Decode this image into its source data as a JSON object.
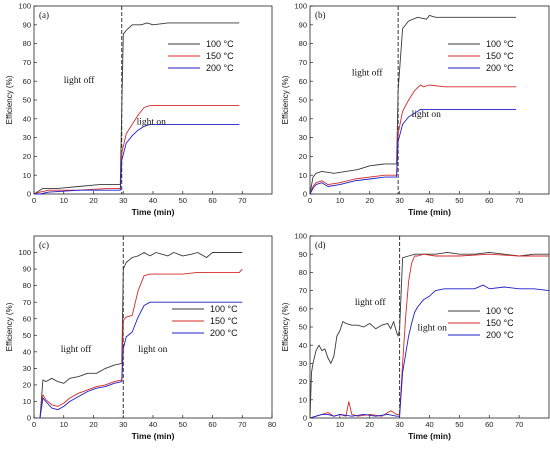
{
  "colors": {
    "100": "#3a3a3a",
    "150": "#d42a2a",
    "200": "#1f1fcc"
  },
  "chart_data": [
    {
      "type": "line",
      "panel_label": "(a)",
      "xlabel": "Time (min)",
      "ylabel": "Efficiency (%)",
      "xlim": [
        0,
        80
      ],
      "ylim": [
        0,
        100
      ],
      "xticks": [
        0,
        10,
        20,
        30,
        40,
        50,
        60,
        70
      ],
      "yticks": [
        0,
        10,
        20,
        30,
        40,
        50,
        60,
        70,
        80,
        90,
        100
      ],
      "light_off_x": 29.5,
      "annotations": [
        {
          "text": "light off",
          "x": 10,
          "y": 59
        },
        {
          "text": "light on",
          "x": 34.5,
          "y": 37
        }
      ],
      "legend_position": "top-right",
      "series": [
        {
          "name": "100 °C",
          "x": [
            0,
            1,
            3,
            8,
            15,
            22,
            29,
            29.3,
            30,
            31,
            33,
            36,
            38,
            40,
            45,
            55,
            69
          ],
          "y": [
            0,
            1,
            3,
            3,
            4,
            5,
            5,
            30,
            85,
            87,
            90,
            90,
            91,
            90,
            91,
            91,
            91
          ]
        },
        {
          "name": "150 °C",
          "x": [
            0,
            2,
            5,
            10,
            15,
            20,
            25,
            29,
            29.5,
            31,
            33,
            35,
            37,
            39,
            42,
            50,
            60,
            69
          ],
          "y": [
            0,
            1,
            2,
            2,
            2,
            2.5,
            3,
            3,
            22,
            32,
            37,
            42,
            46,
            47,
            47,
            47,
            47,
            47
          ]
        },
        {
          "name": "200 °C",
          "x": [
            0,
            2,
            5,
            10,
            15,
            20,
            25,
            29,
            29.5,
            31,
            33,
            35,
            37,
            39,
            42,
            50,
            60,
            69
          ],
          "y": [
            0,
            0,
            1,
            1.5,
            2,
            2,
            2,
            2,
            18,
            27,
            31,
            34,
            36,
            37,
            37,
            37,
            37,
            37
          ]
        }
      ]
    },
    {
      "type": "line",
      "panel_label": "(b)",
      "xlabel": "Time (min)",
      "ylabel": "Efficiency (%)",
      "xlim": [
        0,
        80
      ],
      "ylim": [
        0,
        100
      ],
      "xticks": [
        0,
        10,
        20,
        30,
        40,
        50,
        60,
        70
      ],
      "yticks": [
        0,
        10,
        20,
        30,
        40,
        50,
        60,
        70,
        80,
        90,
        100
      ],
      "light_off_x": 29.5,
      "annotations": [
        {
          "text": "light off",
          "x": 14,
          "y": 63
        },
        {
          "text": "light on",
          "x": 34,
          "y": 41
        }
      ],
      "legend_position": "top-right",
      "series": [
        {
          "name": "100 °C",
          "x": [
            0,
            1,
            2,
            4,
            8,
            12,
            16,
            20,
            25,
            29,
            29.5,
            31,
            33,
            36,
            39,
            40,
            42,
            50,
            60,
            69
          ],
          "y": [
            0,
            9,
            11,
            12,
            11,
            12,
            13,
            15,
            16,
            16,
            55,
            88,
            92,
            94,
            93,
            95,
            94,
            94,
            94,
            94
          ]
        },
        {
          "name": "150 °C",
          "x": [
            0,
            1,
            2,
            4,
            6,
            10,
            15,
            20,
            25,
            29,
            29.5,
            31,
            33,
            35,
            37,
            38,
            40,
            45,
            55,
            69
          ],
          "y": [
            0,
            4,
            6,
            7,
            5,
            6,
            8,
            9,
            10,
            10,
            32,
            44,
            50,
            55,
            58,
            57,
            58,
            57,
            57,
            57
          ]
        },
        {
          "name": "200 °C",
          "x": [
            0,
            1,
            2,
            4,
            6,
            10,
            15,
            20,
            25,
            29,
            29.5,
            31,
            33,
            35,
            37,
            39,
            42,
            50,
            60,
            69
          ],
          "y": [
            0,
            3,
            5,
            6,
            4,
            5,
            7,
            8,
            9,
            9,
            28,
            37,
            41,
            43,
            45,
            45,
            45,
            45,
            45,
            45
          ]
        }
      ]
    },
    {
      "type": "line",
      "panel_label": "(c)",
      "xlabel": "Time (min)",
      "ylabel": "Efficiency (%)",
      "xlim": [
        0,
        80
      ],
      "ylim": [
        0,
        110
      ],
      "xticks": [
        0,
        10,
        20,
        30,
        40,
        50,
        60,
        70,
        80
      ],
      "yticks": [
        0,
        10,
        20,
        30,
        40,
        50,
        60,
        70,
        80,
        90,
        100
      ],
      "light_off_x": 30,
      "annotations": [
        {
          "text": "light off",
          "x": 9,
          "y": 40
        },
        {
          "text": "light on",
          "x": 35,
          "y": 40
        }
      ],
      "legend_position": "center-right",
      "series": [
        {
          "name": "100 °C",
          "x": [
            2,
            3,
            4,
            6,
            8,
            10,
            12,
            15,
            18,
            21,
            24,
            27,
            29.5,
            30,
            31,
            33,
            35,
            37,
            39,
            41,
            43,
            45,
            47,
            50,
            53,
            55,
            58,
            60,
            63,
            66,
            70
          ],
          "y": [
            0,
            23,
            22,
            24,
            22,
            21,
            24,
            25,
            27,
            27,
            30,
            32,
            33,
            90,
            94,
            97,
            98,
            100,
            98,
            100,
            99,
            98,
            100,
            98,
            99,
            100,
            97,
            100,
            100,
            100,
            100
          ]
        },
        {
          "name": "150 °C",
          "x": [
            2,
            3,
            4,
            6,
            8,
            10,
            12,
            15,
            18,
            21,
            24,
            27,
            29.5,
            30,
            31,
            33,
            35,
            37,
            39,
            42,
            45,
            50,
            55,
            60,
            65,
            69,
            70
          ],
          "y": [
            0,
            14,
            11,
            8,
            7,
            9,
            12,
            15,
            17,
            19,
            20,
            22,
            23,
            59,
            61,
            62,
            77,
            86,
            87,
            87,
            87,
            87,
            88,
            88,
            88,
            88,
            90
          ]
        },
        {
          "name": "200 °C",
          "x": [
            2,
            3,
            4,
            6,
            8,
            10,
            12,
            15,
            18,
            21,
            24,
            27,
            29.5,
            30,
            31,
            33,
            35,
            37,
            39,
            42,
            45,
            50,
            55,
            60,
            65,
            70
          ],
          "y": [
            0,
            12,
            10,
            6,
            5,
            7,
            10,
            13,
            16,
            18,
            19,
            21,
            22,
            42,
            49,
            52,
            61,
            68,
            70,
            70,
            70,
            70,
            70,
            70,
            70,
            70
          ]
        }
      ]
    },
    {
      "type": "line",
      "panel_label": "(d)",
      "xlabel": "Time (min)",
      "ylabel": "Efficiency (%)",
      "xlim": [
        0,
        80
      ],
      "ylim": [
        0,
        100
      ],
      "xticks": [
        0,
        10,
        20,
        30,
        40,
        50,
        60,
        70
      ],
      "yticks": [
        0,
        10,
        20,
        30,
        40,
        50,
        60,
        70,
        80,
        90,
        100
      ],
      "light_off_x": 30,
      "annotations": [
        {
          "text": "light off",
          "x": 15,
          "y": 62
        },
        {
          "text": "light on",
          "x": 36,
          "y": 48
        }
      ],
      "legend_position": "center-right",
      "series": [
        {
          "name": "100 °C",
          "x": [
            0,
            0.5,
            1,
            2,
            3,
            4,
            5,
            6,
            7,
            8,
            9,
            10,
            11,
            12,
            14,
            16,
            18,
            20,
            22,
            24,
            26,
            27,
            28,
            29,
            29.5,
            30,
            31,
            33,
            35,
            38,
            42,
            46,
            50,
            55,
            60,
            65,
            70,
            75,
            80
          ],
          "y": [
            0,
            25,
            30,
            37,
            40,
            37,
            38,
            33,
            30,
            34,
            45,
            48,
            53,
            52,
            51,
            51,
            50,
            52,
            49,
            51,
            52,
            49,
            53,
            47,
            45,
            49,
            88,
            89,
            90,
            90,
            90,
            91,
            90,
            90,
            91,
            90,
            89,
            90,
            90
          ]
        },
        {
          "name": "150 °C",
          "x": [
            0,
            2,
            4,
            6,
            8,
            10,
            12,
            13,
            14,
            16,
            20,
            24,
            27,
            29,
            30,
            31,
            32,
            33,
            34,
            35,
            36,
            38,
            42,
            50,
            60,
            70,
            80
          ],
          "y": [
            0,
            1,
            2,
            3,
            1,
            2,
            1,
            9,
            2,
            1,
            2,
            1,
            4,
            2,
            2,
            30,
            55,
            75,
            85,
            89,
            89,
            90,
            89,
            89,
            90,
            89,
            89
          ]
        },
        {
          "name": "200 °C",
          "x": [
            0,
            2,
            4,
            6,
            8,
            10,
            14,
            18,
            22,
            26,
            29,
            30,
            31,
            32,
            33,
            34,
            35,
            36,
            38,
            40,
            42,
            45,
            50,
            55,
            58,
            60,
            65,
            70,
            75,
            80
          ],
          "y": [
            0,
            1,
            2,
            2,
            1,
            2,
            1,
            2,
            1,
            2,
            1,
            1,
            25,
            35,
            45,
            52,
            58,
            61,
            65,
            67,
            70,
            71,
            71,
            71,
            73,
            71,
            72,
            71,
            71,
            70
          ]
        }
      ]
    }
  ]
}
